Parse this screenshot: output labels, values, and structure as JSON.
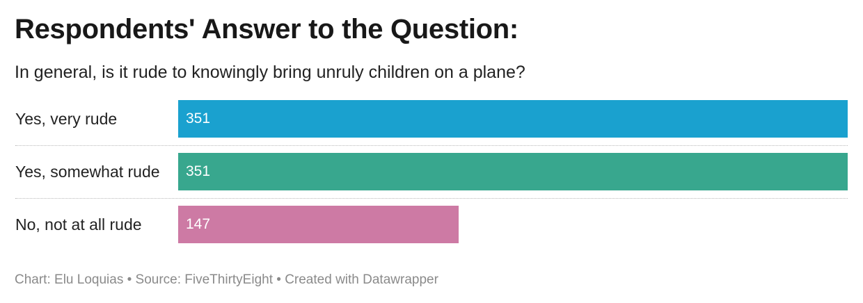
{
  "header": {
    "title": "Respondents' Answer to the Question:",
    "subtitle": "In general, is it rude to knowingly bring unruly children on a plane?"
  },
  "chart_data": {
    "type": "bar",
    "orientation": "horizontal",
    "title": "Respondents' Answer to the Question:",
    "subtitle": "In general, is it rude to knowingly bring unruly children on a plane?",
    "categories": [
      "Yes, very rude",
      "Yes, somewhat rude",
      "No, not at all rude"
    ],
    "values": [
      351,
      351,
      147
    ],
    "colors": [
      "#1aa1cf",
      "#38a78e",
      "#cd7aa4"
    ],
    "xlim": [
      0,
      351
    ],
    "grid": false,
    "legend": "none"
  },
  "footer": {
    "text": "Chart: Elu Loquias • Source: FiveThirtyEight • Created with Datawrapper"
  }
}
